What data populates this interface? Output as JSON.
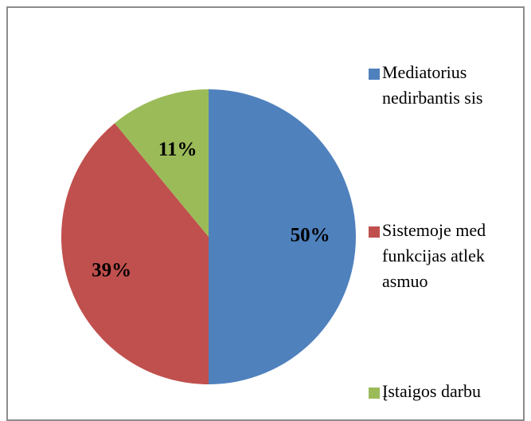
{
  "chart_data": {
    "type": "pie",
    "categories": [
      "Mediatorius nedirbantis sis",
      "Sistemoje med funkcijas atlek asmuo",
      "Įstaigos darbu"
    ],
    "values": [
      50,
      39,
      11
    ],
    "value_labels": [
      "50%",
      "39%",
      "11%"
    ],
    "colors": [
      "#4f81bd",
      "#c0504d",
      "#9bbb59"
    ]
  }
}
